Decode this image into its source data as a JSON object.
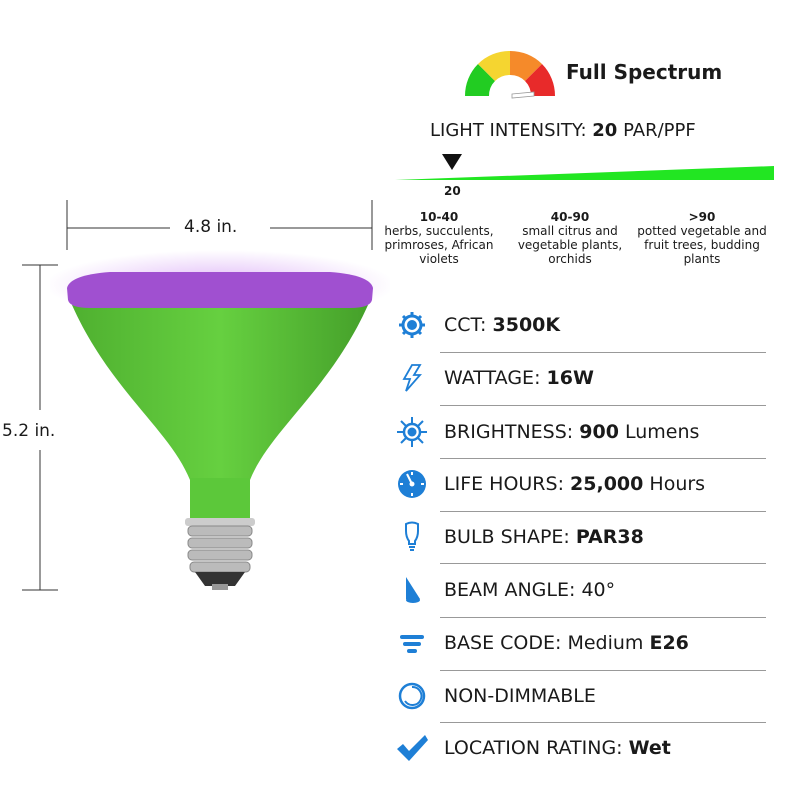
{
  "spectrum": {
    "label": "Full Spectrum",
    "colors": [
      "#22cc22",
      "#f5d530",
      "#f58a2a",
      "#e82a2a"
    ]
  },
  "intensity": {
    "label": "LIGHT INTENSITY:",
    "value": "20",
    "unit": "PAR/PPF",
    "marker": "20",
    "bar_color": "#22e622"
  },
  "ranges": [
    {
      "range": "10-40",
      "desc": "herbs, succulents, primroses, African violets"
    },
    {
      "range": "40-90",
      "desc": "small citrus and vegetable plants, orchids"
    },
    {
      "range": ">90",
      "desc": "potted vegetable and fruit trees, budding plants"
    }
  ],
  "dimensions": {
    "width": "4.8 in.",
    "height": "5.2 in."
  },
  "bulb_colors": {
    "lens": "#a050d0",
    "body": "#5cc83a"
  },
  "icon_color": "#1e7fd6",
  "specs": [
    {
      "icon": "sun-icon",
      "label": "CCT:",
      "value": "3500K",
      "value_prefix": ""
    },
    {
      "icon": "lightning-icon",
      "label": "WATTAGE:",
      "value": "16W",
      "value_prefix": ""
    },
    {
      "icon": "brightness-icon",
      "label": "BRIGHTNESS:",
      "value": "900",
      "value_suffix": "Lumens"
    },
    {
      "icon": "clock-icon",
      "label": "LIFE HOURS:",
      "value": "25,000",
      "value_suffix": "Hours"
    },
    {
      "icon": "bulb-icon",
      "label": "BULB SHAPE:",
      "value": "PAR38"
    },
    {
      "icon": "beam-icon",
      "label": "BEAM ANGLE:",
      "value_plain": "40°"
    },
    {
      "icon": "base-icon",
      "label": "BASE CODE:",
      "value_prefix": "Medium",
      "value": "E26"
    },
    {
      "icon": "dimmer-icon",
      "label": "NON-DIMMABLE"
    },
    {
      "icon": "checkmark-icon",
      "label": "LOCATION RATING:",
      "value": "Wet"
    }
  ]
}
